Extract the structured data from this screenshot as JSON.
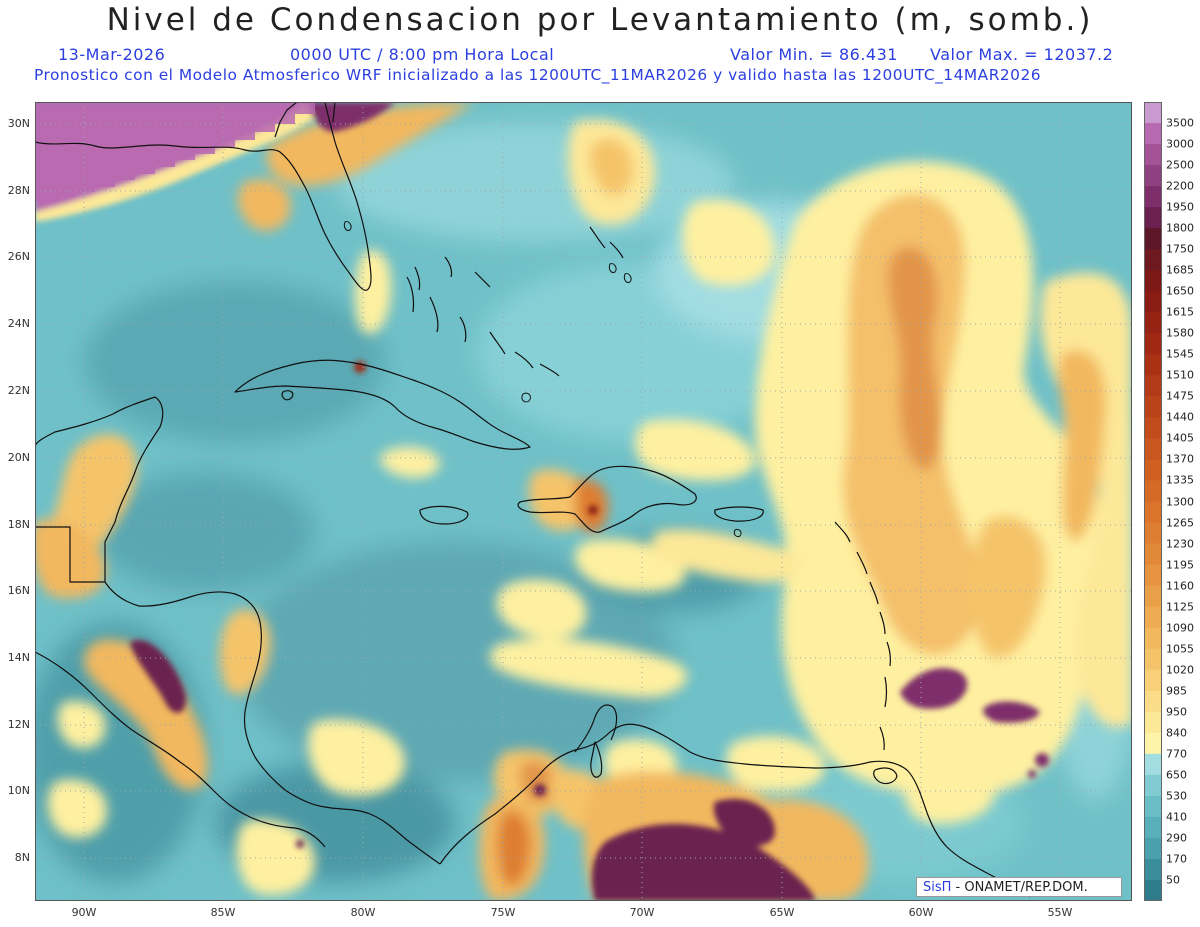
{
  "header": {
    "title": "Nivel de Condensacion por Levantamiento (m, somb.)",
    "date": "13-Mar-2026",
    "time": "0000 UTC / 8:00 pm Hora Local",
    "min": "Valor Min. = 86.431",
    "max": "Valor Max. = 12037.2",
    "model_line": "Pronostico con el Modelo Atmosferico WRF inicializado a las 1200UTC_11MAR2026 y valido hasta las  1200UTC_14MAR2026"
  },
  "axes": {
    "lat_labels": [
      "30N",
      "28N",
      "26N",
      "24N",
      "22N",
      "20N",
      "18N",
      "16N",
      "14N",
      "12N",
      "10N",
      "8N"
    ],
    "lon_labels": [
      "90W",
      "85W",
      "80W",
      "75W",
      "70W",
      "65W",
      "60W",
      "55W"
    ]
  },
  "colorbar": {
    "levels": [
      "50",
      "170",
      "290",
      "410",
      "530",
      "650",
      "770",
      "840",
      "950",
      "985",
      "1020",
      "1055",
      "1090",
      "1125",
      "1160",
      "1195",
      "1230",
      "1265",
      "1300",
      "1335",
      "1370",
      "1405",
      "1440",
      "1475",
      "1510",
      "1545",
      "1580",
      "1615",
      "1650",
      "1685",
      "1750",
      "1800",
      "1950",
      "2200",
      "2500",
      "3000",
      "3500"
    ],
    "colors": [
      "#2e7c8c",
      "#3a8e9c",
      "#4aa0ac",
      "#5ab0ba",
      "#6cbec6",
      "#80ccd2",
      "#a2dde2",
      "#fef3a8",
      "#fde898",
      "#fbdc88",
      "#f8d078",
      "#f5c46a",
      "#f2b85e",
      "#eeab52",
      "#eaa048",
      "#e69440",
      "#e28938",
      "#de7e32",
      "#da742c",
      "#d56a26",
      "#d06022",
      "#ca561f",
      "#c44c1c",
      "#bc4219",
      "#b43916",
      "#ab3014",
      "#a12913",
      "#962213",
      "#8a1c14",
      "#7e1816",
      "#6e1820",
      "#5e1728",
      "#6b2050",
      "#7e2e6a",
      "#8f4080",
      "#a45496",
      "#b86ab0"
    ],
    "top_color": "#c99ad0"
  },
  "credit": {
    "brand": "SisΠ",
    "org": " - ONAMET/REP.DOM."
  }
}
